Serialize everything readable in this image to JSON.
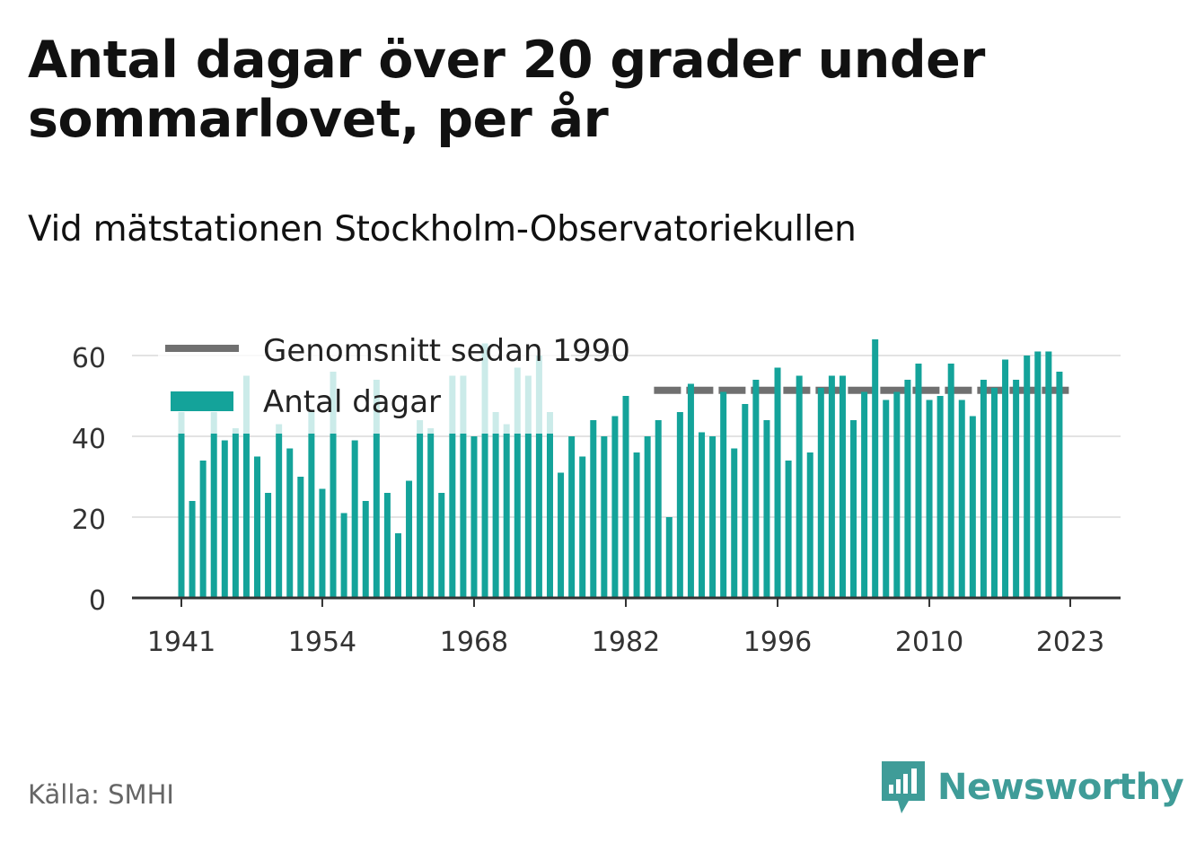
{
  "chart_data": {
    "type": "bar",
    "title": "Antal dagar över 20 grader under sommarlovet, per år",
    "subtitle": "Vid mätstationen Stockholm-Observatoriekullen",
    "x": [
      1941,
      1942,
      1943,
      1944,
      1945,
      1946,
      1947,
      1948,
      1949,
      1950,
      1951,
      1952,
      1953,
      1954,
      1955,
      1956,
      1957,
      1958,
      1959,
      1960,
      1961,
      1962,
      1963,
      1964,
      1965,
      1966,
      1967,
      1968,
      1969,
      1970,
      1971,
      1972,
      1973,
      1974,
      1975,
      1976,
      1977,
      1978,
      1979,
      1980,
      1981,
      1982,
      1983,
      1984,
      1985,
      1986,
      1987,
      1988,
      1989,
      1990,
      1991,
      1992,
      1993,
      1994,
      1995,
      1996,
      1997,
      1998,
      1999,
      2000,
      2001,
      2002,
      2003,
      2004,
      2005,
      2006,
      2007,
      2008,
      2009,
      2010,
      2011,
      2012,
      2013,
      2014,
      2015,
      2016,
      2017,
      2018,
      2019,
      2020,
      2021,
      2022,
      2023
    ],
    "series": [
      {
        "name": "Antal dagar",
        "color": "#14a39a",
        "values": [
          46,
          24,
          34,
          46,
          39,
          42,
          55,
          35,
          26,
          43,
          37,
          30,
          46,
          27,
          56,
          21,
          39,
          24,
          54,
          26,
          16,
          29,
          44,
          42,
          26,
          55,
          55,
          40,
          63,
          46,
          43,
          57,
          55,
          60,
          46,
          31,
          40,
          35,
          44,
          40,
          45,
          50,
          36,
          40,
          44,
          20,
          46,
          53,
          41,
          40,
          51,
          37,
          48,
          54,
          44,
          57,
          34,
          55,
          36,
          52,
          55,
          55,
          44,
          51,
          64,
          49,
          51,
          54,
          58,
          49,
          50,
          58,
          49,
          45,
          54,
          52,
          59,
          54,
          60,
          61,
          61,
          56,
          0
        ]
      },
      {
        "name": "Genomsnitt sedan 1990",
        "color": "#707070",
        "type": "line",
        "value": 51.4,
        "x_start": 1984.6,
        "x_end": 2023
      }
    ],
    "x_ticks": [
      1941,
      1954,
      1968,
      1982,
      1996,
      2010,
      2023
    ],
    "y_ticks": [
      0,
      20,
      40,
      60
    ],
    "ylim": [
      0,
      66
    ],
    "grid": true,
    "legend_placement": "top-left"
  },
  "footer": {
    "source": "Källa: SMHI",
    "brand": "Newsworthy"
  }
}
